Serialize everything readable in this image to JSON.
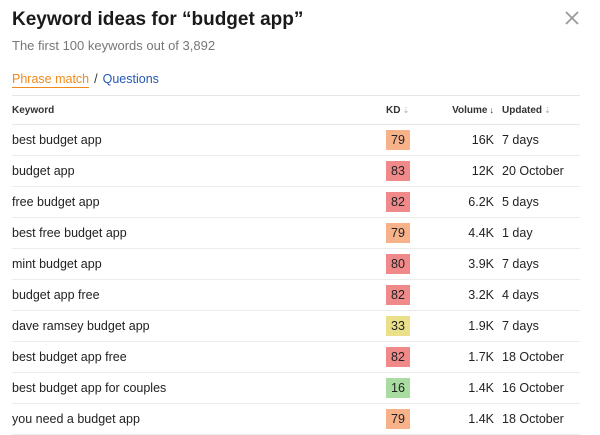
{
  "header": {
    "title": "Keyword ideas for “budget app”",
    "subtitle": "The first 100 keywords out of 3,892"
  },
  "tabs": {
    "active": "Phrase match",
    "separator": "/",
    "other": "Questions"
  },
  "table": {
    "columns": {
      "keyword": "Keyword",
      "kd": "KD",
      "volume": "Volume",
      "updated": "Updated"
    },
    "rows": [
      {
        "keyword": "best budget app",
        "kd": "79",
        "kd_color": "#f7b28a",
        "volume": "16K",
        "updated": "7 days"
      },
      {
        "keyword": "budget app",
        "kd": "83",
        "kd_color": "#f08a8a",
        "volume": "12K",
        "updated": "20 October"
      },
      {
        "keyword": "free budget app",
        "kd": "82",
        "kd_color": "#f08a8a",
        "volume": "6.2K",
        "updated": "5 days"
      },
      {
        "keyword": "best free budget app",
        "kd": "79",
        "kd_color": "#f7b28a",
        "volume": "4.4K",
        "updated": "1 day"
      },
      {
        "keyword": "mint budget app",
        "kd": "80",
        "kd_color": "#f08a8a",
        "volume": "3.9K",
        "updated": "7 days"
      },
      {
        "keyword": "budget app free",
        "kd": "82",
        "kd_color": "#f08a8a",
        "volume": "3.2K",
        "updated": "4 days"
      },
      {
        "keyword": "dave ramsey budget app",
        "kd": "33",
        "kd_color": "#eae08a",
        "volume": "1.9K",
        "updated": "7 days"
      },
      {
        "keyword": "best budget app free",
        "kd": "82",
        "kd_color": "#f08a8a",
        "volume": "1.7K",
        "updated": "18 October"
      },
      {
        "keyword": "best budget app for couples",
        "kd": "16",
        "kd_color": "#a8dca0",
        "volume": "1.4K",
        "updated": "16 October"
      },
      {
        "keyword": "you need a budget app",
        "kd": "79",
        "kd_color": "#f7b28a",
        "volume": "1.4K",
        "updated": "18 October"
      }
    ]
  },
  "icons": {
    "close": "close-icon",
    "sort_desc": "arrow-down-icon",
    "sort_neutral": "sort-icon"
  },
  "colors": {
    "accent_orange": "#f08a1c",
    "link_blue": "#2458b3"
  }
}
